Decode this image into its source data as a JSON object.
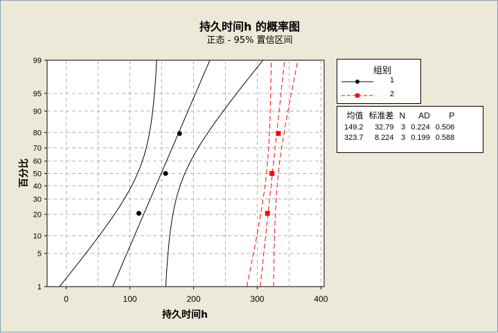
{
  "chart_data": {
    "type": "scatter",
    "title": "持久时间h 的概率图",
    "subtitle": "正态 - 95% 置信区间",
    "xlabel": "持久时间h",
    "ylabel": "百分比",
    "xlim": [
      -30,
      405
    ],
    "y_scale": "normal-probability",
    "ylim": [
      1,
      99
    ],
    "x_ticks": [
      0,
      100,
      200,
      300,
      400
    ],
    "x_tick_labels": [
      "0",
      "100",
      "200",
      "300",
      "400"
    ],
    "y_ticks": [
      1,
      5,
      10,
      20,
      30,
      40,
      50,
      60,
      70,
      80,
      90,
      95,
      99
    ],
    "y_tick_labels": [
      "1",
      "5",
      "10",
      "20",
      "30",
      "40",
      "50",
      "60",
      "70",
      "80",
      "90",
      "95",
      "99"
    ],
    "grid": true,
    "legend": {
      "title": "组别",
      "placement": "right",
      "entries": [
        "1",
        "2"
      ]
    },
    "series": [
      {
        "name": "1",
        "color": "#000000",
        "marker": "circle",
        "line_style": "solid",
        "points": [
          {
            "x": 114,
            "y": 20.6
          },
          {
            "x": 156,
            "y": 50
          },
          {
            "x": 178,
            "y": 79.4
          }
        ],
        "mean": 149.2,
        "stdev": 32.79,
        "n": 3
      },
      {
        "name": "2",
        "color": "#ff0000",
        "marker": "square",
        "line_style": "dashed",
        "points": [
          {
            "x": 316,
            "y": 20.6
          },
          {
            "x": 323,
            "y": 50
          },
          {
            "x": 333,
            "y": 79.4
          }
        ],
        "mean": 323.7,
        "stdev": 8.224,
        "n": 3
      }
    ],
    "stats_table": {
      "headers": [
        "均值",
        "标准差",
        "N",
        "AD",
        "P"
      ],
      "rows": [
        [
          "149.2",
          "32.79",
          "3",
          "0.224",
          "0.506"
        ],
        [
          "323.7",
          "8.224",
          "3",
          "0.199",
          "0.588"
        ]
      ]
    }
  }
}
